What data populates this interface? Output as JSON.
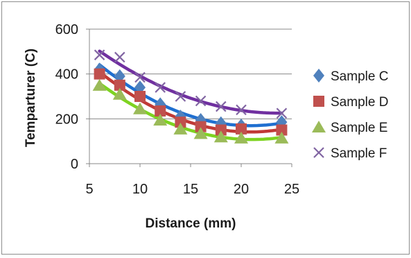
{
  "chart_data": {
    "type": "scatter",
    "title": "",
    "xlabel": "Distance (mm)",
    "ylabel": "Temparturer (C)",
    "xlim": [
      5,
      25
    ],
    "ylim": [
      0,
      600
    ],
    "xticks": [
      5,
      10,
      15,
      20,
      25
    ],
    "yticks": [
      0,
      200,
      400,
      600
    ],
    "grid": "horizontal",
    "legend_position": "right",
    "trendlines": "polynomial",
    "series": [
      {
        "name": "Sample C",
        "marker": "diamond",
        "color": "#4f81bd",
        "trend_color": "#1f6fd0",
        "x": [
          6,
          8,
          10,
          12,
          14,
          16,
          18,
          20,
          24
        ],
        "y": [
          420,
          390,
          340,
          265,
          210,
          195,
          180,
          170,
          185
        ]
      },
      {
        "name": "Sample D",
        "marker": "square",
        "color": "#c0504d",
        "trend_color": "#c03a36",
        "x": [
          6,
          8,
          10,
          12,
          14,
          16,
          18,
          20,
          24
        ],
        "y": [
          400,
          350,
          300,
          235,
          185,
          165,
          150,
          155,
          150
        ]
      },
      {
        "name": "Sample E",
        "marker": "triangle",
        "color": "#9bbb59",
        "trend_color": "#7ed321",
        "x": [
          6,
          8,
          10,
          12,
          14,
          16,
          18,
          20,
          24
        ],
        "y": [
          350,
          310,
          245,
          195,
          155,
          135,
          120,
          115,
          115
        ]
      },
      {
        "name": "Sample F",
        "marker": "x",
        "color": "#8064a2",
        "trend_color": "#7030a0",
        "x": [
          6,
          8,
          10,
          12,
          14,
          16,
          18,
          20,
          24
        ],
        "y": [
          485,
          475,
          385,
          340,
          300,
          280,
          255,
          240,
          225
        ]
      }
    ]
  }
}
